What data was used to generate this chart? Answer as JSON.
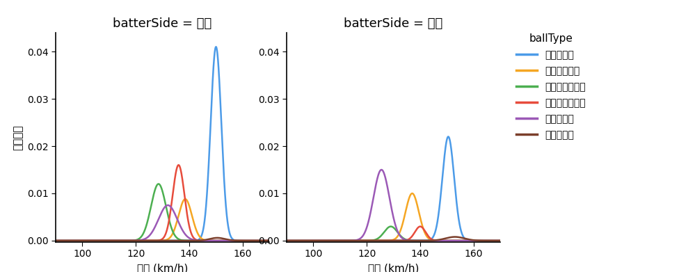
{
  "title_left": "batterSide = 左打",
  "title_right": "batterSide = 右打",
  "xlabel": "球速 (km/h)",
  "ylabel": "確率密度",
  "legend_title": "ballType",
  "xlim": [
    90,
    170
  ],
  "ylim": [
    -0.0003,
    0.044
  ],
  "yticks": [
    0.0,
    0.01,
    0.02,
    0.03,
    0.04
  ],
  "xticks": [
    100,
    120,
    140,
    160
  ],
  "ball_types": [
    "ストレート",
    "カットボール",
    "ナックルカーブ",
    "チェンジアップ",
    "スライダー",
    "ツーシーム"
  ],
  "colors": [
    "#4C9BE8",
    "#F5A623",
    "#4CAF50",
    "#E74C3C",
    "#9B59B6",
    "#7B3F2B"
  ],
  "left": {
    "ストレート": {
      "mean": 150.0,
      "std": 2.0,
      "scale": 0.041
    },
    "カットボール": {
      "mean": 138.5,
      "std": 2.5,
      "scale": 0.0088
    },
    "ナックルカーブ": {
      "mean": 128.5,
      "std": 2.8,
      "scale": 0.012
    },
    "チェンジアップ": {
      "mean": 136.0,
      "std": 2.2,
      "scale": 0.016
    },
    "スライダー": {
      "mean": 132.0,
      "std": 3.5,
      "scale": 0.0075
    },
    "ツーシーム": {
      "mean": 150.5,
      "std": 2.8,
      "scale": 0.0006
    }
  },
  "right": {
    "ストレート": {
      "mean": 150.5,
      "std": 2.2,
      "scale": 0.022
    },
    "カットボール": {
      "mean": 137.0,
      "std": 2.5,
      "scale": 0.01
    },
    "ナックルカーブ": {
      "mean": 129.0,
      "std": 2.5,
      "scale": 0.003
    },
    "チェンジアップ": {
      "mean": 140.0,
      "std": 2.0,
      "scale": 0.003
    },
    "スライダー": {
      "mean": 125.5,
      "std": 3.0,
      "scale": 0.015
    },
    "ツーシーム": {
      "mean": 153.0,
      "std": 3.5,
      "scale": 0.0008
    }
  },
  "background_color": "#FFFFFF",
  "linewidth": 1.8,
  "title_fontsize": 13,
  "label_fontsize": 11,
  "tick_fontsize": 10,
  "legend_fontsize": 10,
  "legend_title_fontsize": 11
}
